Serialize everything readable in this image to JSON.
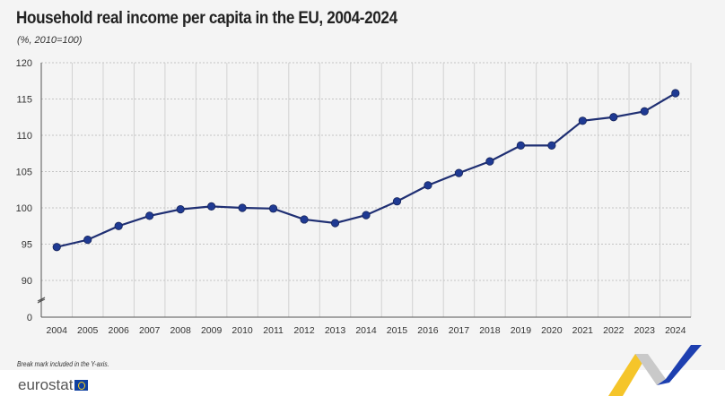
{
  "chart_data": {
    "type": "line",
    "title": "Household real income per capita in the EU, 2004-2024",
    "subtitle": "(%, 2010=100)",
    "categories": [
      "2004",
      "2005",
      "2006",
      "2007",
      "2008",
      "2009",
      "2010",
      "2011",
      "2012",
      "2013",
      "2014",
      "2015",
      "2016",
      "2017",
      "2018",
      "2019",
      "2020",
      "2021",
      "2022",
      "2023",
      "2024"
    ],
    "values": [
      94.6,
      95.6,
      97.5,
      98.9,
      99.8,
      100.2,
      100.0,
      99.9,
      98.4,
      97.9,
      99.0,
      100.9,
      103.1,
      104.8,
      106.4,
      108.6,
      108.6,
      112.0,
      112.5,
      113.3,
      115.8
    ],
    "yticks": [
      "0",
      "90",
      "95",
      "100",
      "105",
      "110",
      "115",
      "120"
    ],
    "ylim": [
      90,
      120
    ],
    "y_axis_break": true,
    "grid": true,
    "line_color": "#1f2f73",
    "marker_color": "#1f3a93",
    "note": "Break mark included in the Y-axis."
  },
  "footer": {
    "logo": "eurostat"
  }
}
